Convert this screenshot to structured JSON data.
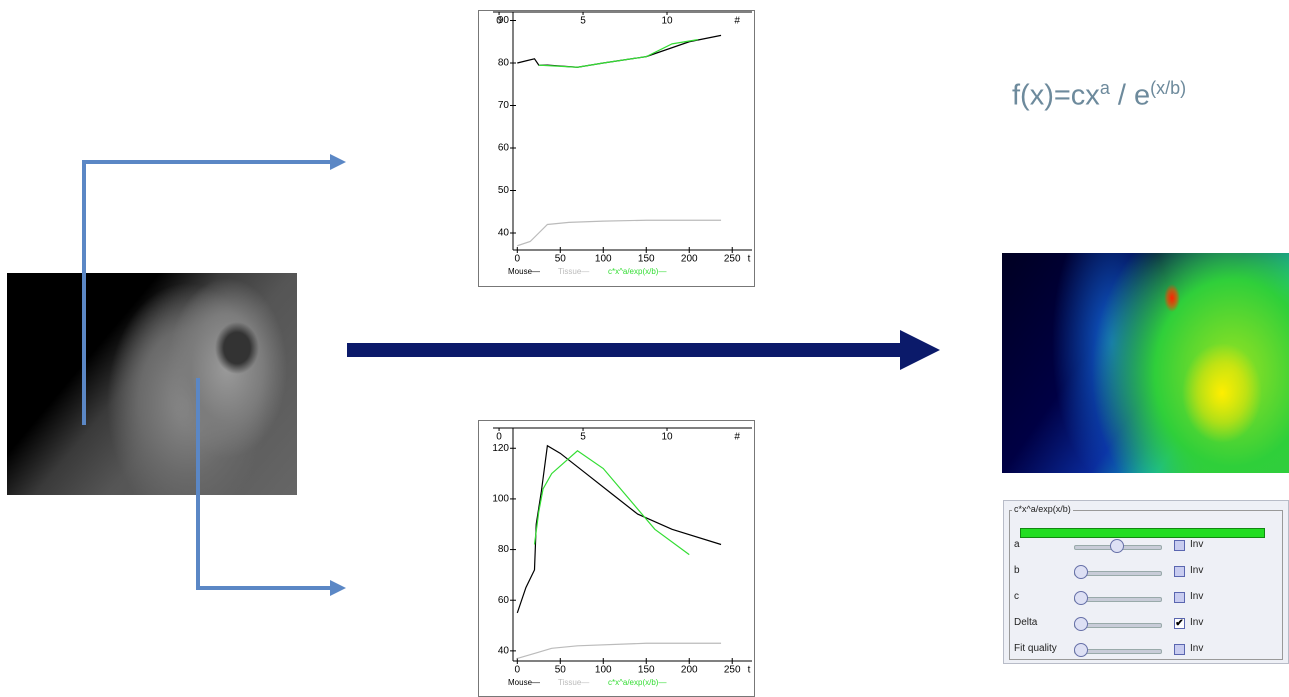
{
  "formula": [
    "f(x)=cx",
    "a",
    " / e",
    "(x/b)"
  ],
  "chart_data": [
    {
      "type": "line",
      "xlabel": "t",
      "x2label": "#",
      "xlim": [
        -5,
        273
      ],
      "xticks": [
        0,
        50,
        100,
        150,
        200,
        250
      ],
      "x2lim": [
        0.83,
        15.06
      ],
      "x2ticks": [
        0,
        5,
        10
      ],
      "ylim": [
        36,
        92
      ],
      "yticks": [
        40,
        50,
        60,
        70,
        80,
        90
      ],
      "series": [
        {
          "name": "Mouse—",
          "color": "#000000",
          "x": [
            0,
            10,
            20,
            25,
            35,
            70,
            100,
            150,
            200,
            237
          ],
          "values": [
            80,
            80.5,
            81,
            79.5,
            79.5,
            79,
            80,
            81.5,
            85,
            86.5
          ]
        },
        {
          "name": "Tissue—",
          "color": "#bbbbbb",
          "x": [
            0,
            15,
            25,
            35,
            60,
            100,
            150,
            237
          ],
          "values": [
            37,
            38,
            40,
            42,
            42.5,
            42.8,
            43,
            43
          ]
        },
        {
          "name": "c*x^a/exp(x/b)—",
          "color": "#33dd33",
          "x": [
            25,
            70,
            100,
            150,
            180,
            210
          ],
          "values": [
            79.5,
            79,
            80,
            81.5,
            84.5,
            85.5
          ]
        }
      ]
    },
    {
      "type": "line",
      "xlabel": "t",
      "x2label": "#",
      "xlim": [
        -5,
        273
      ],
      "xticks": [
        0,
        50,
        100,
        150,
        200,
        250
      ],
      "x2lim": [
        0.83,
        15.06
      ],
      "x2ticks": [
        0,
        5,
        10
      ],
      "ylim": [
        36,
        128
      ],
      "yticks": [
        40,
        60,
        80,
        100,
        120
      ],
      "series": [
        {
          "name": "Mouse—",
          "color": "#000000",
          "x": [
            0,
            10,
            20,
            22,
            28,
            35,
            50,
            80,
            110,
            140,
            180,
            237
          ],
          "values": [
            55,
            65,
            72,
            90,
            103,
            121,
            118,
            110,
            102,
            94,
            88,
            82
          ]
        },
        {
          "name": "Tissue—",
          "color": "#bbbbbb",
          "x": [
            0,
            20,
            40,
            70,
            150,
            237
          ],
          "values": [
            37,
            39,
            41,
            42,
            43,
            43
          ]
        },
        {
          "name": "c*x^a/exp(x/b)—",
          "color": "#33dd33",
          "x": [
            20,
            25,
            30,
            40,
            70,
            100,
            130,
            160,
            200
          ],
          "values": [
            82,
            95,
            104,
            110,
            119,
            112,
            100,
            88,
            78
          ]
        }
      ]
    }
  ],
  "panel": {
    "title": "c*x^a/exp(x/b)",
    "rows": [
      {
        "label": "a",
        "checkbox": "Inv",
        "checked": false
      },
      {
        "label": "b",
        "checkbox": "Inv",
        "checked": false
      },
      {
        "label": "c",
        "checkbox": "Inv",
        "checked": false
      },
      {
        "label": "Delta",
        "checkbox": "Inv",
        "checked": true
      },
      {
        "label": "Fit quality",
        "checkbox": "Inv",
        "checked": false
      }
    ]
  }
}
